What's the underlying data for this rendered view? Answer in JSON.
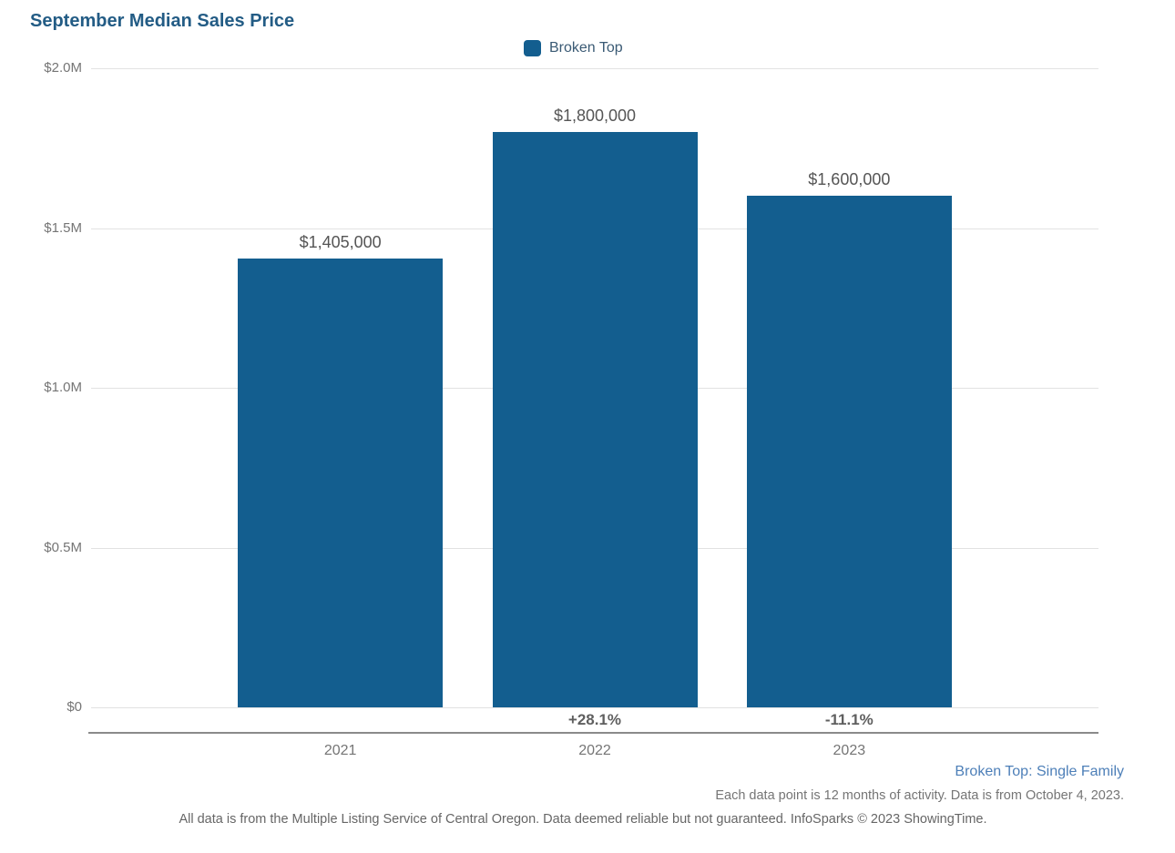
{
  "title": "September Median Sales Price",
  "legend": {
    "label": "Broken Top",
    "color": "#135e8f"
  },
  "chart_data": {
    "type": "bar",
    "title": "September Median Sales Price",
    "series_name": "Broken Top",
    "categories": [
      "2021",
      "2022",
      "2023"
    ],
    "values": [
      1405000,
      1800000,
      1600000
    ],
    "value_labels": [
      "$1,405,000",
      "$1,800,000",
      "$1,600,000"
    ],
    "pct_change_labels": [
      "",
      "+28.1%",
      "-11.1%"
    ],
    "xlabel": "",
    "ylabel": "",
    "ylim": [
      0,
      2000000
    ],
    "ytick_values": [
      2000000,
      1500000,
      1000000,
      500000,
      0
    ],
    "ytick_labels": [
      "$2.0M",
      "$1.5M",
      "$1.0M",
      "$0.5M",
      "$0"
    ],
    "grid": true,
    "legend_position": "top-center",
    "bar_color": "#135e8f"
  },
  "footer": {
    "series_note": "Broken Top: Single Family",
    "data_note": "Each data point is 12 months of activity. Data is from October 4, 2023.",
    "disclaimer": "All data is from the Multiple Listing Service of Central Oregon. Data deemed reliable but not guaranteed. InfoSparks © 2023 ShowingTime."
  }
}
